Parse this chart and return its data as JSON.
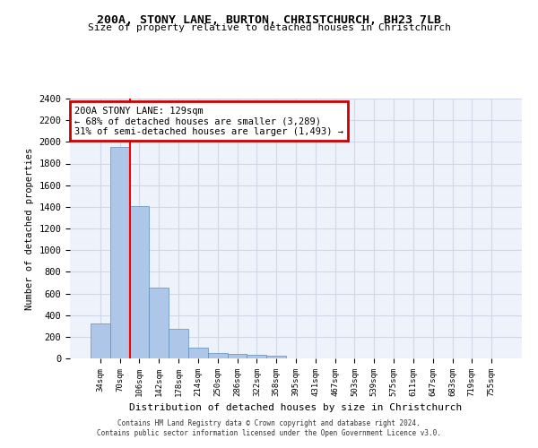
{
  "title1": "200A, STONY LANE, BURTON, CHRISTCHURCH, BH23 7LB",
  "title2": "Size of property relative to detached houses in Christchurch",
  "xlabel": "Distribution of detached houses by size in Christchurch",
  "ylabel": "Number of detached properties",
  "bar_values": [
    325,
    1950,
    1405,
    650,
    270,
    100,
    48,
    38,
    35,
    22,
    0,
    0,
    0,
    0,
    0,
    0,
    0,
    0,
    0,
    0,
    0
  ],
  "bar_labels": [
    "34sqm",
    "70sqm",
    "106sqm",
    "142sqm",
    "178sqm",
    "214sqm",
    "250sqm",
    "286sqm",
    "322sqm",
    "358sqm",
    "395sqm",
    "431sqm",
    "467sqm",
    "503sqm",
    "539sqm",
    "575sqm",
    "611sqm",
    "647sqm",
    "683sqm",
    "719sqm",
    "755sqm"
  ],
  "bar_color": "#aec6e8",
  "bar_edge_color": "#5a8fc0",
  "grid_color": "#d0d8e8",
  "bg_color": "#eef2fa",
  "annotation_text": "200A STONY LANE: 129sqm\n← 68% of detached houses are smaller (3,289)\n31% of semi-detached houses are larger (1,493) →",
  "annotation_box_color": "#ffffff",
  "annotation_box_edge": "#cc0000",
  "footer1": "Contains HM Land Registry data © Crown copyright and database right 2024.",
  "footer2": "Contains public sector information licensed under the Open Government Licence v3.0.",
  "ylim": [
    0,
    2400
  ],
  "yticks": [
    0,
    200,
    400,
    600,
    800,
    1000,
    1200,
    1400,
    1600,
    1800,
    2000,
    2200,
    2400
  ]
}
